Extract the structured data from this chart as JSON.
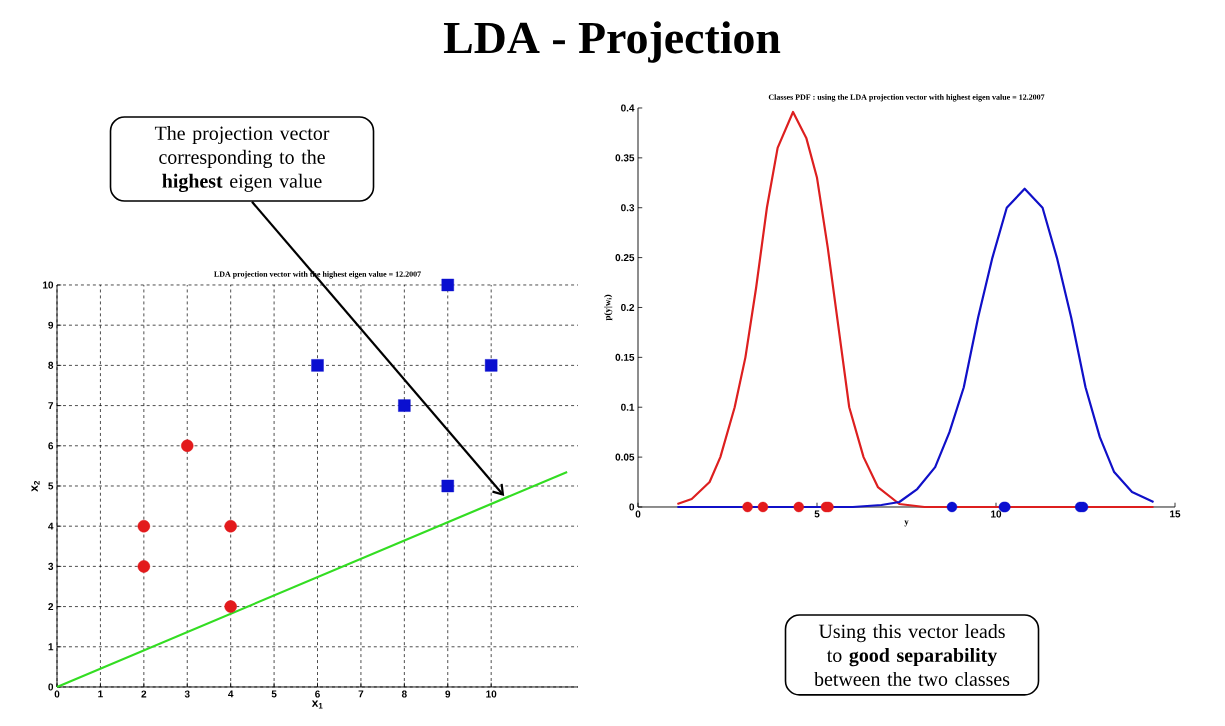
{
  "chart_data": [
    {
      "type": "scatter",
      "title": "LDA - Projection",
      "subtitle": "LDA projection vector with the highest eigen value = 12.2007",
      "xlabel": "x$_{1}$",
      "ylabel": "x$_{2}$",
      "xlim": [
        0,
        12
      ],
      "xticks": [
        0,
        1,
        2,
        3,
        4,
        5,
        6,
        7,
        8,
        9,
        10
      ],
      "ylim": [
        0,
        10
      ],
      "yticks": [
        0,
        1,
        2,
        3,
        4,
        5,
        6,
        7,
        8,
        9,
        10
      ],
      "grid": true,
      "series": [
        {
          "color": "#e31a1c",
          "marker": "circle",
          "x": [
            2,
            2,
            3,
            4,
            4
          ],
          "values": [
            4,
            3,
            6,
            4,
            2
          ]
        },
        {
          "color": "#0a0fd0",
          "marker": "square",
          "x": [
            9,
            6,
            8,
            10,
            9
          ],
          "values": [
            10,
            8,
            7,
            8,
            5
          ]
        },
        {
          "type": "line",
          "color": "#33dd22",
          "marker": "none",
          "x": [
            0,
            11.75
          ],
          "values": [
            0,
            5.35
          ]
        }
      ],
      "annotations": [
        {
          "text": "The projection vector corresponding to the **highest** eigen value",
          "x": 10.3,
          "y": 4.75
        }
      ]
    },
    {
      "type": "line",
      "title": "Classes PDF : using the LDA projection vector with highest eigen value = 12.2007",
      "xlabel": "y",
      "ylabel": "p(y|w$_{i}$)",
      "xlim": [
        0,
        15
      ],
      "xticks": [
        0,
        5,
        10,
        15
      ],
      "ylim": [
        0,
        0.4
      ],
      "yticks": [
        0,
        0.05,
        0.1,
        0.15,
        0.2,
        0.25,
        0.3,
        0.35,
        0.4
      ],
      "series": [
        {
          "color": "#dd1f1f",
          "marker": "none",
          "x": [
            1.1,
            1.5,
            2,
            2.3,
            2.7,
            3,
            3.3,
            3.6,
            3.9,
            4.33,
            4.7,
            5,
            5.3,
            5.6,
            5.9,
            6.3,
            6.7,
            7.3,
            8,
            11,
            14.4
          ],
          "values": [
            0.003,
            0.008,
            0.025,
            0.05,
            0.1,
            0.15,
            0.22,
            0.3,
            0.36,
            0.396,
            0.37,
            0.33,
            0.26,
            0.18,
            0.1,
            0.05,
            0.02,
            0.003,
            0,
            0,
            0
          ]
        },
        {
          "color": "#1010c8",
          "marker": "none",
          "x": [
            1.1,
            6,
            6.8,
            7.3,
            7.8,
            8.3,
            8.7,
            9.1,
            9.5,
            9.9,
            10.3,
            10.8,
            11.3,
            11.7,
            12.1,
            12.5,
            12.9,
            13.3,
            13.8,
            14.4
          ],
          "values": [
            0,
            0,
            0.002,
            0.005,
            0.018,
            0.04,
            0.075,
            0.12,
            0.19,
            0.25,
            0.3,
            0.319,
            0.3,
            0.25,
            0.19,
            0.12,
            0.07,
            0.035,
            0.015,
            0.005
          ]
        },
        {
          "type": "scatter",
          "color": "#e31a1c",
          "marker": "circle",
          "x": [
            3.06,
            3.49,
            4.49,
            5.25,
            5.32
          ],
          "values": [
            0,
            0,
            0,
            0,
            0
          ]
        },
        {
          "type": "scatter",
          "color": "#0a0fd0",
          "marker": "circle",
          "x": [
            8.77,
            10.22,
            10.26,
            12.35,
            12.43
          ],
          "values": [
            0,
            0,
            0,
            0,
            0
          ]
        }
      ],
      "annotations": [
        "Using this vector leads to **good separability** between the two classes"
      ]
    }
  ]
}
